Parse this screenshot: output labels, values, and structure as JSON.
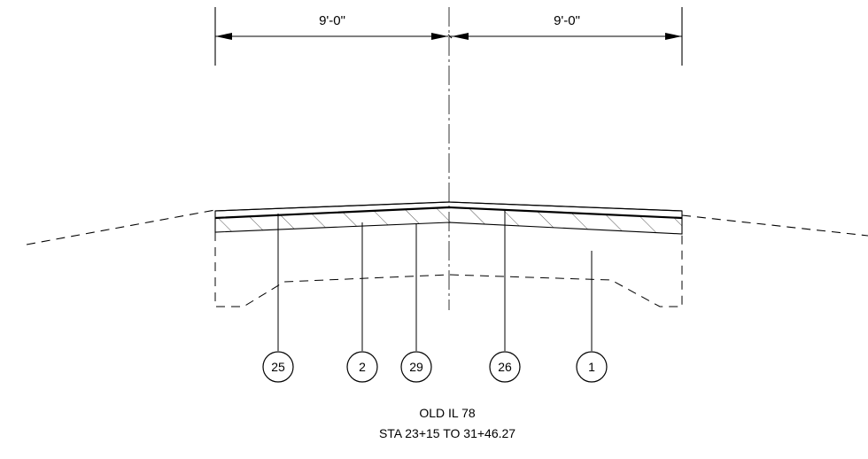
{
  "dimensions": {
    "left": "9'-0\"",
    "right": "9'-0\""
  },
  "callouts": [
    {
      "label": "25"
    },
    {
      "label": "2"
    },
    {
      "label": "29"
    },
    {
      "label": "26"
    },
    {
      "label": "1"
    }
  ],
  "title": {
    "line1": "OLD IL 78",
    "line2": "STA 23+15 TO 31+46.27"
  }
}
